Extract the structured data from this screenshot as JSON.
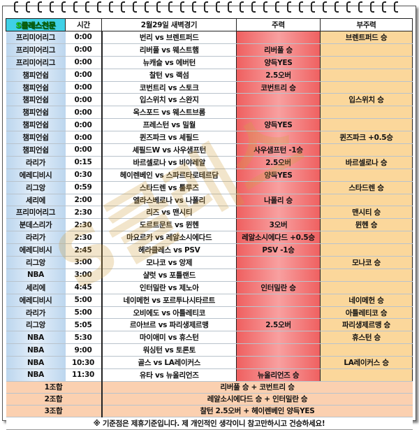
{
  "header": {
    "brand": "S클래스천문",
    "time": "시간",
    "match": "2월29일 새벽경기",
    "main": "주력",
    "sub": "부주력"
  },
  "rows": [
    {
      "league": "프리미어리그",
      "time": "0:00",
      "match": "번리 vs 브렌트퍼드",
      "main": "",
      "sub": "브렌트퍼드 승"
    },
    {
      "league": "프리미어리그",
      "time": "0:00",
      "match": "리버풀 vs 웨스트햄",
      "main": "리버풀 승",
      "sub": ""
    },
    {
      "league": "프리미어리그",
      "time": "0:00",
      "match": "뉴캐슬 vs 에버턴",
      "main": "양득YES",
      "sub": ""
    },
    {
      "league": "챔피언쉽",
      "time": "0:00",
      "match": "찰턴 vs 랙섬",
      "main": "2.5오버",
      "sub": ""
    },
    {
      "league": "챔피언쉽",
      "time": "0:00",
      "match": "코번트리 vs 스토크",
      "main": "코번트리 승",
      "sub": ""
    },
    {
      "league": "챔피언쉽",
      "time": "0:00",
      "match": "입스위치 vs 스완지",
      "main": "",
      "sub": "입스위치 승"
    },
    {
      "league": "챔피언쉽",
      "time": "0:00",
      "match": "옥스포드 vs 웨스트브롬",
      "main": "",
      "sub": ""
    },
    {
      "league": "챔피언쉽",
      "time": "0:00",
      "match": "프레스턴 vs 밀월",
      "main": "양득YES",
      "sub": ""
    },
    {
      "league": "챔피언쉽",
      "time": "0:00",
      "match": "퀸즈파크 vs 셰필드",
      "main": "",
      "sub": "퀸즈파크 +0.5승"
    },
    {
      "league": "챔피언쉽",
      "time": "0:00",
      "match": "셰필드W vs 사우샘프턴",
      "main": "사우샘프턴 -1승",
      "sub": ""
    },
    {
      "league": "라리가",
      "time": "0:15",
      "match": "바르셀로나 vs 비야레알",
      "main": "2.5오버",
      "sub": "바르셀로나 승"
    },
    {
      "league": "에레디비시",
      "time": "0:30",
      "match": "헤이렌베인 vs 스파르타로테르담",
      "main": "양득YES",
      "sub": ""
    },
    {
      "league": "리그앙",
      "time": "0:59",
      "match": "스타드렌 vs 툴루즈",
      "main": "",
      "sub": "스타드렌 승"
    },
    {
      "league": "세리에",
      "time": "2:00",
      "match": "엘라스베로나 vs 나폴리",
      "main": "나폴리 승",
      "sub": ""
    },
    {
      "league": "프리미어리그",
      "time": "2:30",
      "match": "리즈 vs 맨시티",
      "main": "",
      "sub": "맨시티 승"
    },
    {
      "league": "분데스리가",
      "time": "2:30",
      "match": "도르트문트 vs 뮌헨",
      "main": "3오버",
      "sub": "뮌헨 승"
    },
    {
      "league": "라리가",
      "time": "2:30",
      "match": "마요르카 vs 레알소시에다드",
      "main": "레알소시에다드 +0.5승",
      "sub": ""
    },
    {
      "league": "에레디비시",
      "time": "2:45",
      "match": "헤라클레스 vs PSV",
      "main": "PSV -1승",
      "sub": ""
    },
    {
      "league": "리그앙",
      "time": "3:00",
      "match": "모나코 vs 앙제",
      "main": "",
      "sub": "모나코 승"
    },
    {
      "league": "NBA",
      "time": "3:00",
      "match": "샬럿 vs 포틀랜드",
      "main": "",
      "sub": ""
    },
    {
      "league": "세리에",
      "time": "4:45",
      "match": "인터밀란 vs 제노아",
      "main": "인터밀란 승",
      "sub": ""
    },
    {
      "league": "에레디비시",
      "time": "5:00",
      "match": "네이메헌 vs 포르투나시타르트",
      "main": "",
      "sub": "네이메헌 승"
    },
    {
      "league": "라리가",
      "time": "5:00",
      "match": "오비에도 vs 아틀레티코",
      "main": "",
      "sub": "아틀레티코 승"
    },
    {
      "league": "리그앙",
      "time": "5:05",
      "match": "르아브르 vs 파리생제르맹",
      "main": "2.5오버",
      "sub": "파리생제르맹 승"
    },
    {
      "league": "NBA",
      "time": "5:30",
      "match": "마이애미 vs 휴스턴",
      "main": "",
      "sub": "휴스턴 승"
    },
    {
      "league": "NBA",
      "time": "9:00",
      "match": "워싱턴 vs 토론토",
      "main": "",
      "sub": ""
    },
    {
      "league": "NBA",
      "time": "10:30",
      "match": "골스 vs LA레이커스",
      "main": "",
      "sub": "LA레이커스 승"
    },
    {
      "league": "NBA",
      "time": "11:30",
      "match": "유타 vs 뉴올리언즈",
      "main": "뉴올리언즈 승",
      "sub": ""
    }
  ],
  "combos": [
    {
      "label": "1조합",
      "value": "리버풀 승 + 코번트리 승"
    },
    {
      "label": "2조합",
      "value": "레알소시에다드 승 + 인터밀란 승"
    },
    {
      "label": "3조합",
      "value": "찰턴 2.5오버 + 헤이렌베인 양득YES"
    }
  ],
  "note": "※ 기준점은 제휴기준입니다. 제 개인적인 생각이니 참고만하시고 건승하세요!",
  "colors": {
    "main": "#ef6060",
    "sub": "#fbd79b",
    "league": "#bcd6ee",
    "combo": "#fbd0b0",
    "brand": "#24e024"
  }
}
